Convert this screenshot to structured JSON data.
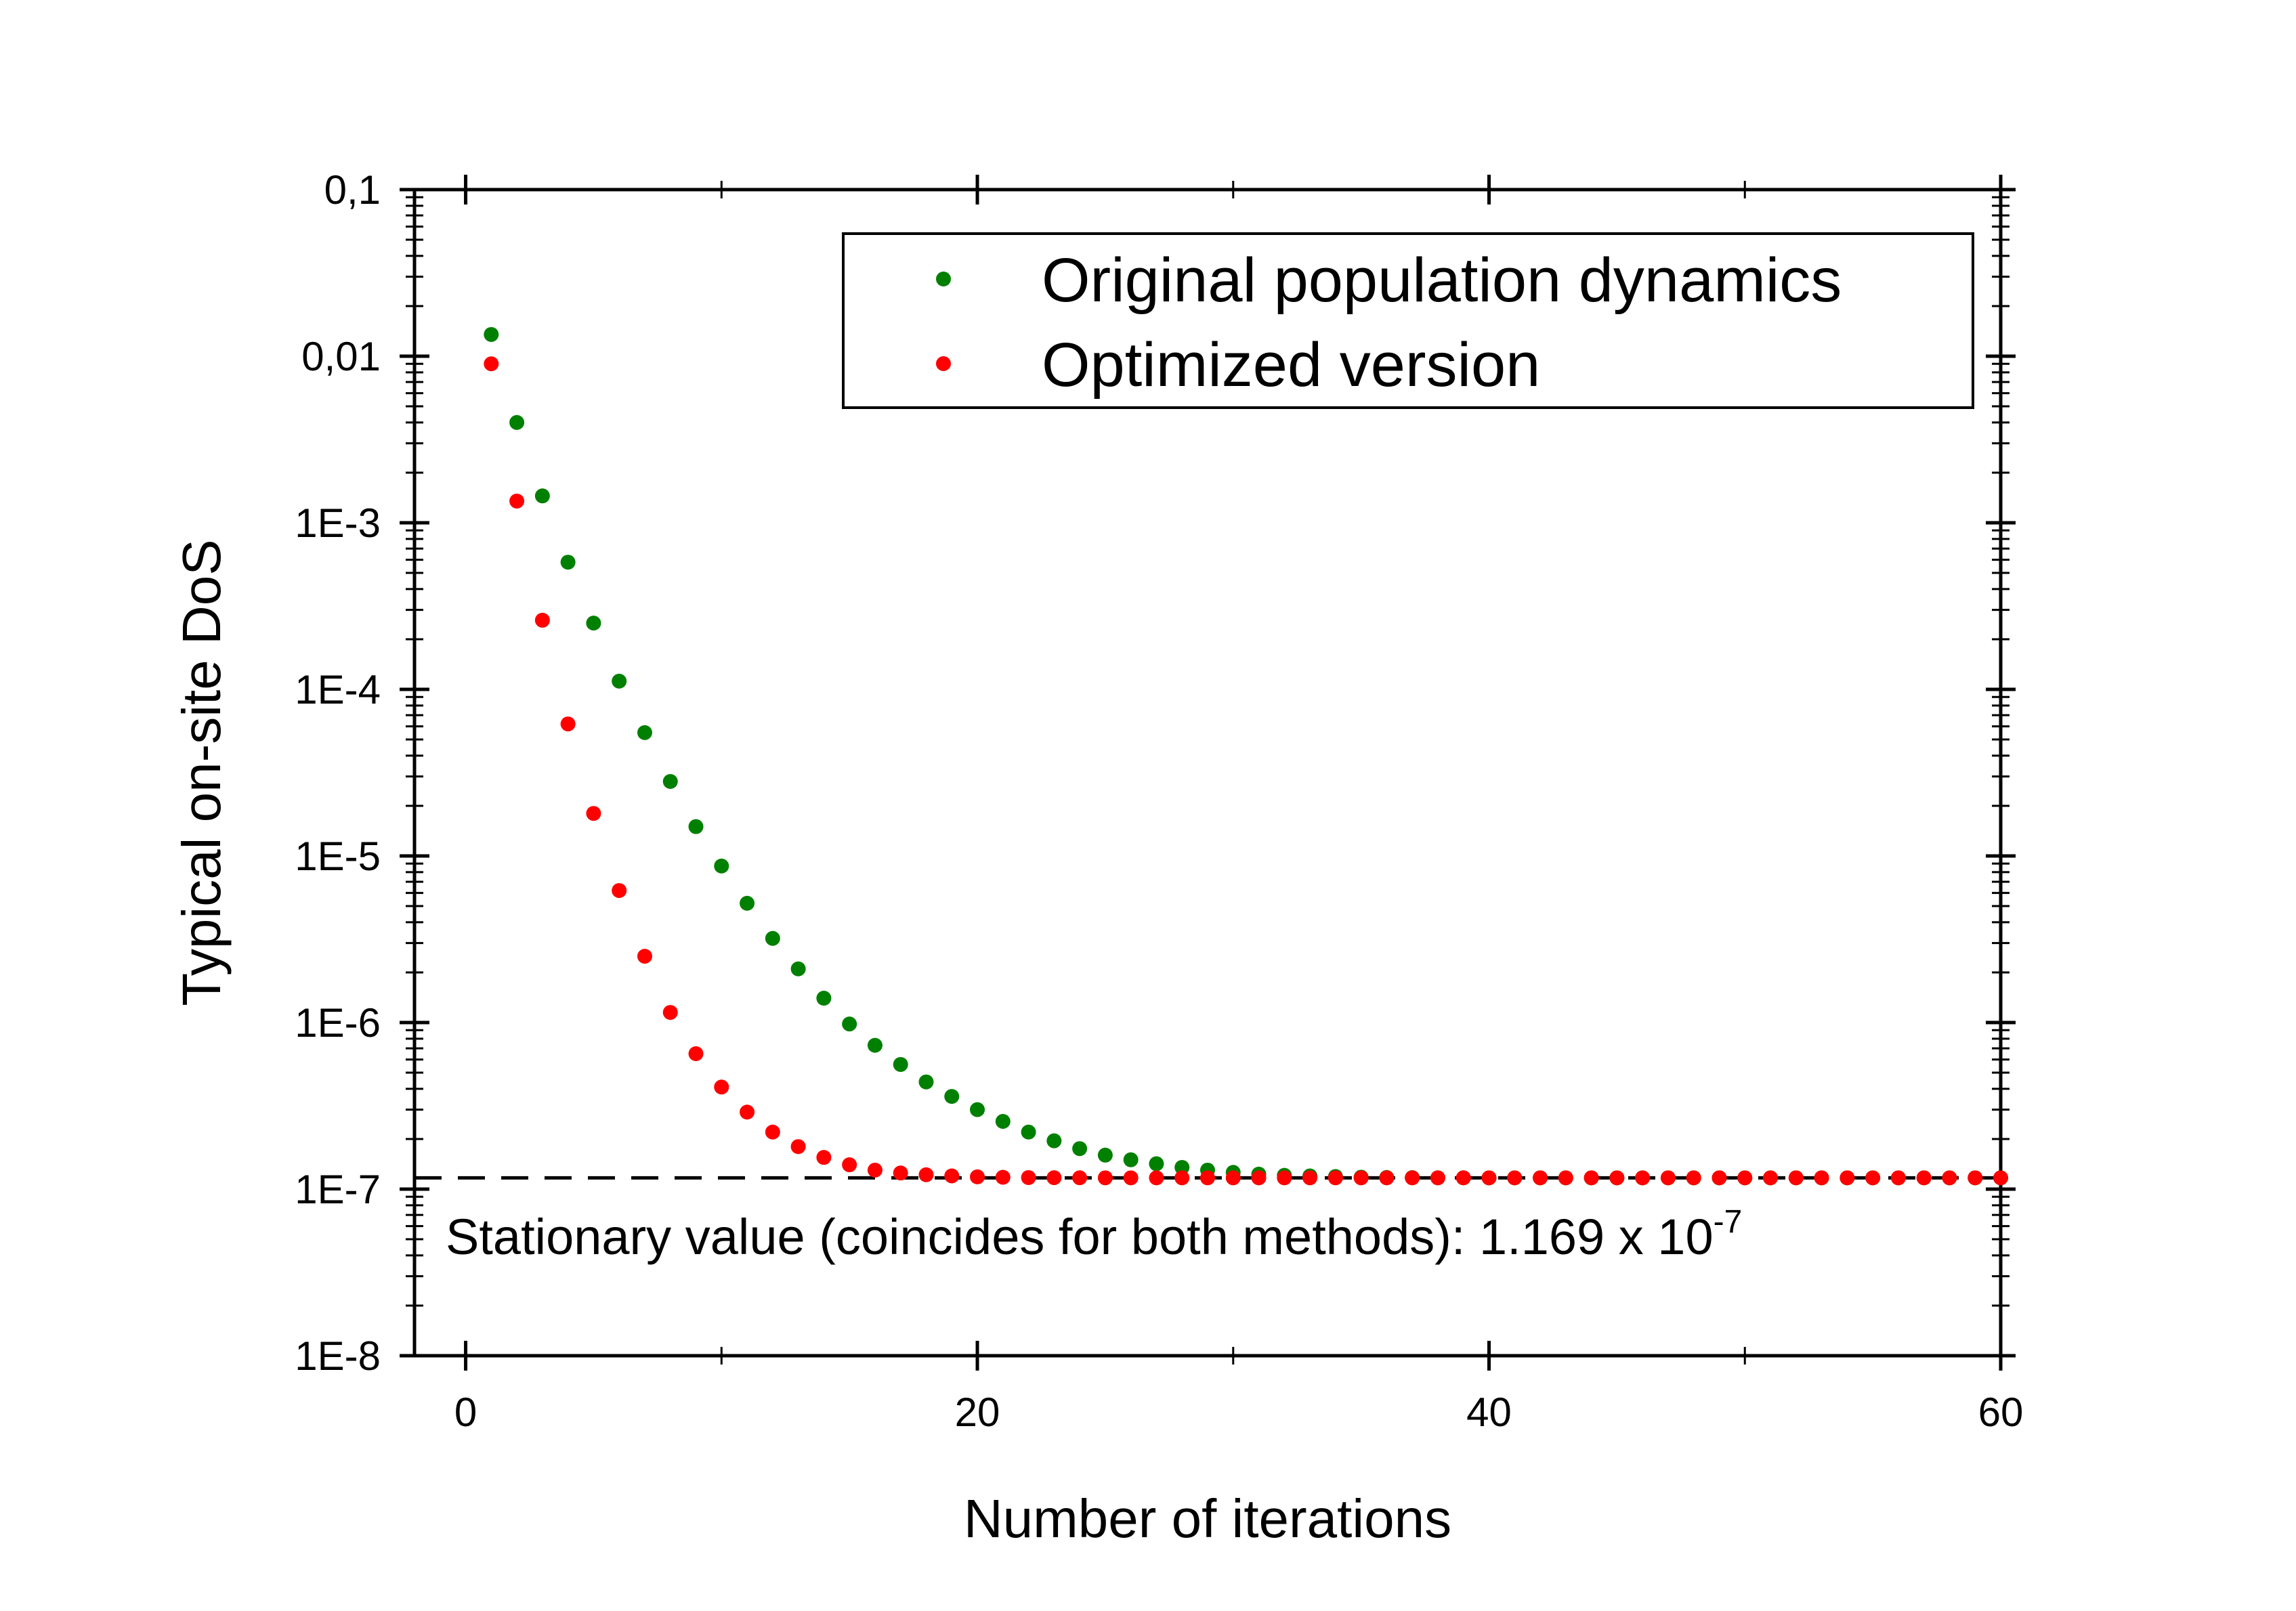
{
  "chart_data": {
    "type": "scatter",
    "xlabel": "Number of iterations",
    "ylabel": "Typical on-site DoS",
    "xlim": [
      -2,
      60
    ],
    "ylim": [
      1e-08,
      0.1
    ],
    "yscale": "log",
    "x_ticks": [
      0,
      20,
      40,
      60
    ],
    "x_tick_labels": [
      "0",
      "20",
      "40",
      "60"
    ],
    "y_ticks": [
      1e-08,
      1e-07,
      1e-06,
      1e-05,
      0.0001,
      0.001,
      0.01,
      0.1
    ],
    "y_tick_labels": [
      "1E-8",
      "1E-7",
      "1E-6",
      "1E-5",
      "1E-4",
      "1E-3",
      "0,01",
      "0,1"
    ],
    "grid": false,
    "legend_position": "top-right",
    "series": [
      {
        "name": "Original population dynamics",
        "color": "#008000",
        "x": [
          1,
          2,
          3,
          4,
          5,
          6,
          7,
          8,
          9,
          10,
          11,
          12,
          13,
          14,
          15,
          16,
          17,
          18,
          19,
          20,
          21,
          22,
          23,
          24,
          25,
          26,
          27,
          28,
          29,
          30,
          31,
          32,
          33,
          34,
          35,
          36,
          37,
          38,
          39,
          40,
          41,
          42,
          43,
          44,
          45,
          46,
          47,
          48,
          49,
          50,
          51,
          52,
          53,
          54,
          55,
          56,
          57,
          58,
          59,
          60
        ],
        "y": [
          0.0135,
          0.004,
          0.00145,
          0.00058,
          0.00025,
          0.000112,
          5.5e-05,
          2.8e-05,
          1.5e-05,
          8.7e-06,
          5.2e-06,
          3.2e-06,
          2.1e-06,
          1.4e-06,
          9.8e-07,
          7.3e-07,
          5.6e-07,
          4.4e-07,
          3.6e-07,
          3e-07,
          2.55e-07,
          2.2e-07,
          1.95e-07,
          1.75e-07,
          1.6e-07,
          1.5e-07,
          1.42e-07,
          1.35e-07,
          1.3e-07,
          1.26e-07,
          1.23e-07,
          1.21e-07,
          1.2e-07,
          1.19e-07,
          1.18e-07,
          1.175e-07,
          1.172e-07,
          1.17e-07,
          1.17e-07,
          1.169e-07,
          1.169e-07,
          1.169e-07,
          1.169e-07,
          1.169e-07,
          1.169e-07,
          1.169e-07,
          1.169e-07,
          1.169e-07,
          1.169e-07,
          1.169e-07,
          1.169e-07,
          1.169e-07,
          1.169e-07,
          1.169e-07,
          1.169e-07,
          1.169e-07,
          1.169e-07,
          1.169e-07,
          1.169e-07,
          1.169e-07
        ]
      },
      {
        "name": "Optimized version",
        "color": "#ff0000",
        "x": [
          1,
          2,
          3,
          4,
          5,
          6,
          7,
          8,
          9,
          10,
          11,
          12,
          13,
          14,
          15,
          16,
          17,
          18,
          19,
          20,
          21,
          22,
          23,
          24,
          25,
          26,
          27,
          28,
          29,
          30,
          31,
          32,
          33,
          34,
          35,
          36,
          37,
          38,
          39,
          40,
          41,
          42,
          43,
          44,
          45,
          46,
          47,
          48,
          49,
          50,
          51,
          52,
          53,
          54,
          55,
          56,
          57,
          58,
          59,
          60
        ],
        "y": [
          0.009,
          0.00135,
          0.00026,
          6.2e-05,
          1.8e-05,
          6.2e-06,
          2.5e-06,
          1.15e-06,
          6.5e-07,
          4.1e-07,
          2.9e-07,
          2.2e-07,
          1.8e-07,
          1.55e-07,
          1.4e-07,
          1.3e-07,
          1.25e-07,
          1.22e-07,
          1.2e-07,
          1.185e-07,
          1.178e-07,
          1.173e-07,
          1.171e-07,
          1.17e-07,
          1.169e-07,
          1.169e-07,
          1.169e-07,
          1.169e-07,
          1.169e-07,
          1.169e-07,
          1.169e-07,
          1.169e-07,
          1.169e-07,
          1.169e-07,
          1.169e-07,
          1.169e-07,
          1.169e-07,
          1.169e-07,
          1.169e-07,
          1.169e-07,
          1.169e-07,
          1.169e-07,
          1.169e-07,
          1.169e-07,
          1.169e-07,
          1.169e-07,
          1.169e-07,
          1.169e-07,
          1.169e-07,
          1.169e-07,
          1.169e-07,
          1.169e-07,
          1.169e-07,
          1.169e-07,
          1.169e-07,
          1.169e-07,
          1.169e-07,
          1.169e-07,
          1.169e-07,
          1.169e-07
        ]
      }
    ],
    "reference_line": {
      "y": 1.169e-07,
      "style": "dashed",
      "color": "#000000"
    },
    "annotation": {
      "text": "Stationary value (coincides for both methods): 1.169 x 10",
      "superscript": "-7"
    }
  }
}
